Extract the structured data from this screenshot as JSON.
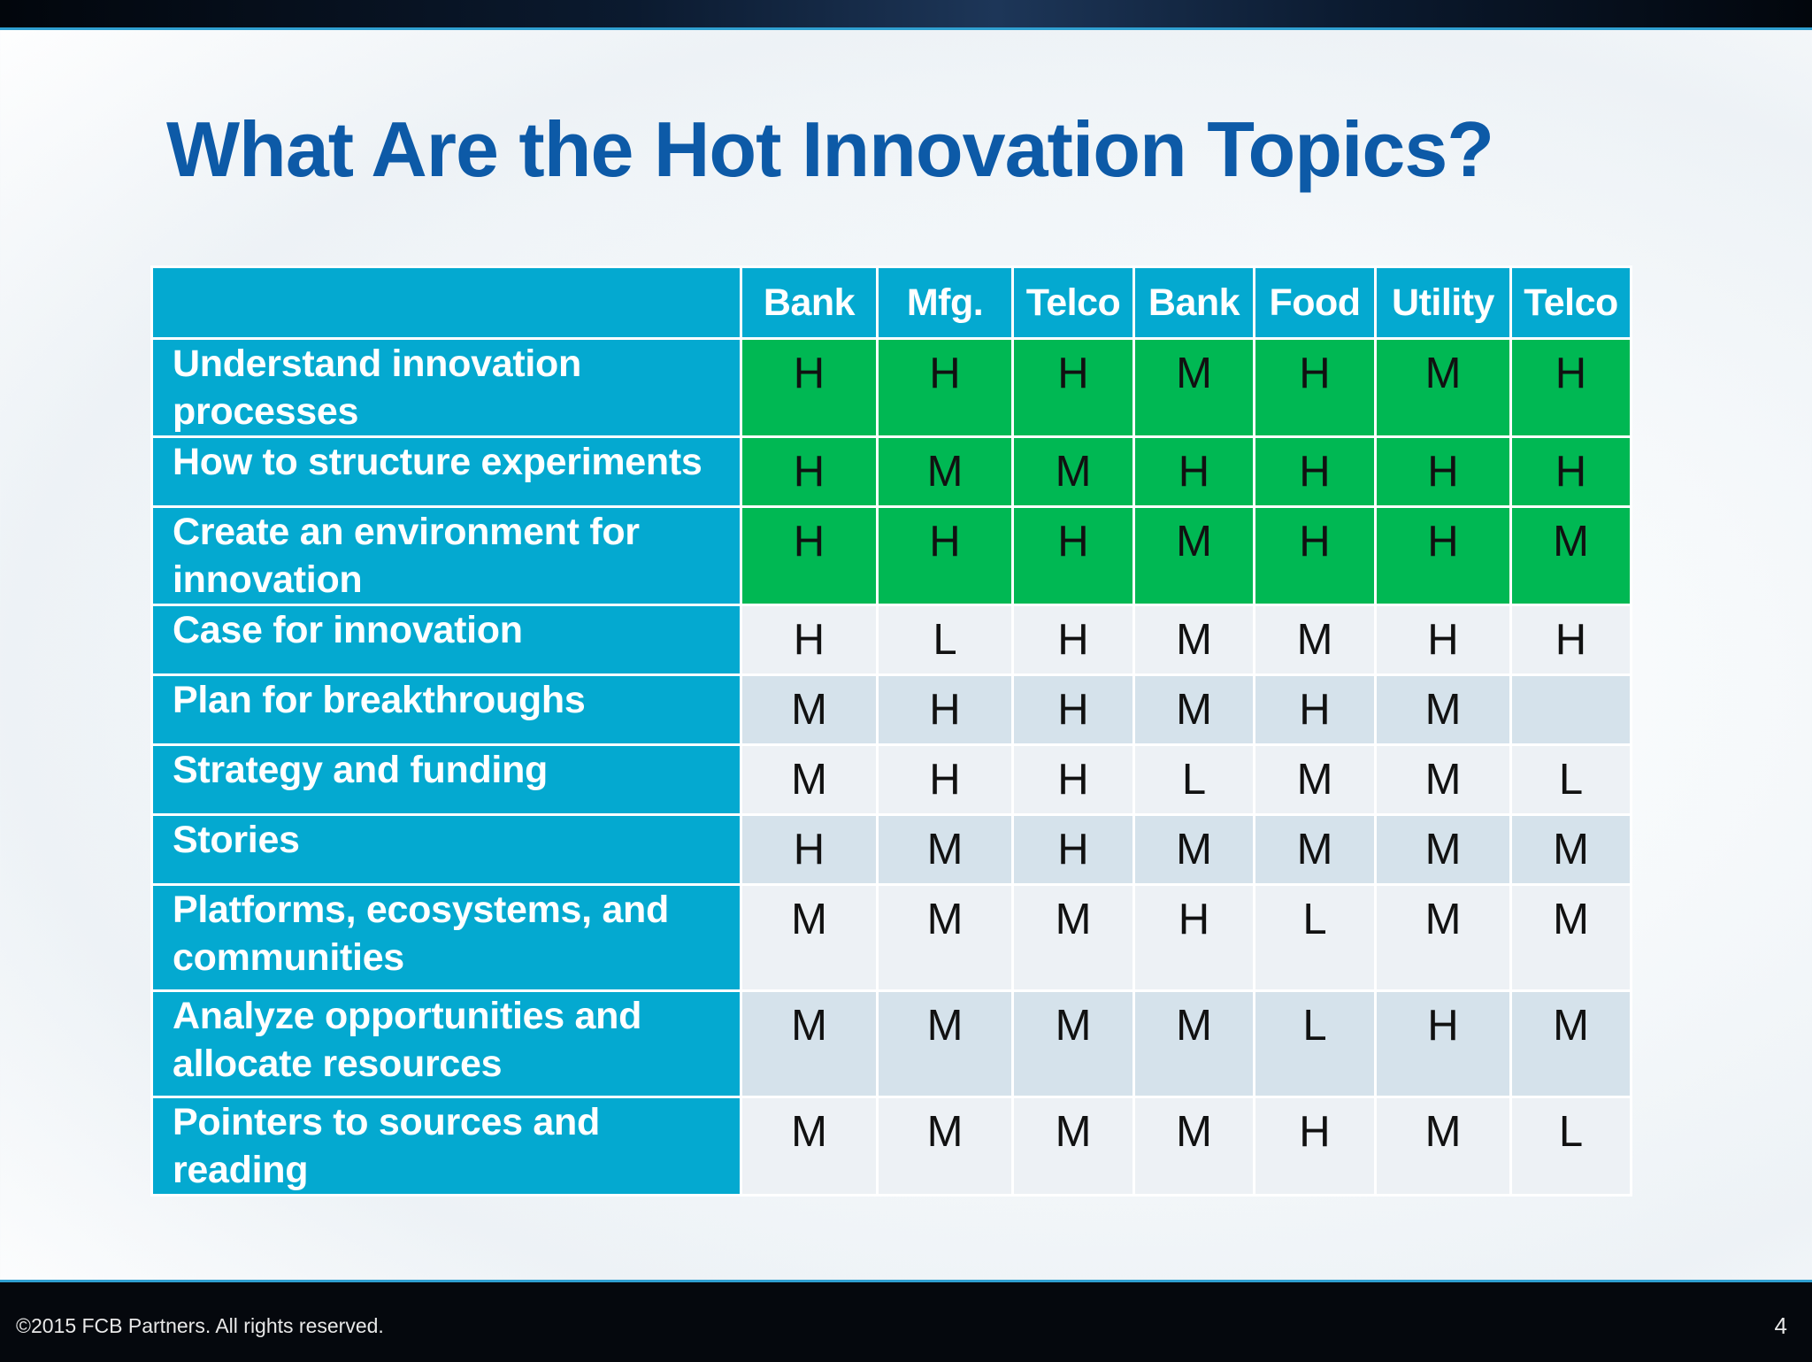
{
  "title": "What Are the Hot Innovation Topics?",
  "table": {
    "columns": [
      "Bank",
      "Mfg.",
      "Telco",
      "Bank",
      "Food",
      "Utility",
      "Telco"
    ],
    "rows": [
      {
        "topic": "Understand innovation processes",
        "values": [
          "H",
          "H",
          "H",
          "M",
          "H",
          "M",
          "H"
        ]
      },
      {
        "topic": "How to structure experiments",
        "values": [
          "H",
          "M",
          "M",
          "H",
          "H",
          "H",
          "H"
        ]
      },
      {
        "topic": "Create an environment for innovation",
        "values": [
          "H",
          "H",
          "H",
          "M",
          "H",
          "H",
          "M"
        ]
      },
      {
        "topic": "Case for innovation",
        "values": [
          "H",
          "L",
          "H",
          "M",
          "M",
          "H",
          "H"
        ]
      },
      {
        "topic": "Plan for breakthroughs",
        "values": [
          "M",
          "H",
          "H",
          "M",
          "H",
          "M",
          ""
        ]
      },
      {
        "topic": "Strategy and funding",
        "values": [
          "M",
          "H",
          "H",
          "L",
          "M",
          "M",
          "L"
        ]
      },
      {
        "topic": "Stories",
        "values": [
          "H",
          "M",
          "H",
          "M",
          "M",
          "M",
          "M"
        ]
      },
      {
        "topic": "Platforms, ecosystems, and communities",
        "values": [
          "M",
          "M",
          "M",
          "H",
          "L",
          "M",
          "M"
        ]
      },
      {
        "topic": "Analyze opportunities and allocate resources",
        "values": [
          "M",
          "M",
          "M",
          "M",
          "L",
          "H",
          "M"
        ]
      },
      {
        "topic": "Pointers to sources and reading",
        "values": [
          "M",
          "M",
          "M",
          "M",
          "H",
          "M",
          "L"
        ]
      }
    ]
  },
  "footer": {
    "copyright": "©2015 FCB Partners. All rights reserved.",
    "page_number": "4"
  },
  "colors": {
    "title": "#0d5aa7",
    "header_cyan": "#04a9d0",
    "highlight_green": "#00b853",
    "row_light": "#edf1f5",
    "row_blue": "#d5e2eb"
  }
}
